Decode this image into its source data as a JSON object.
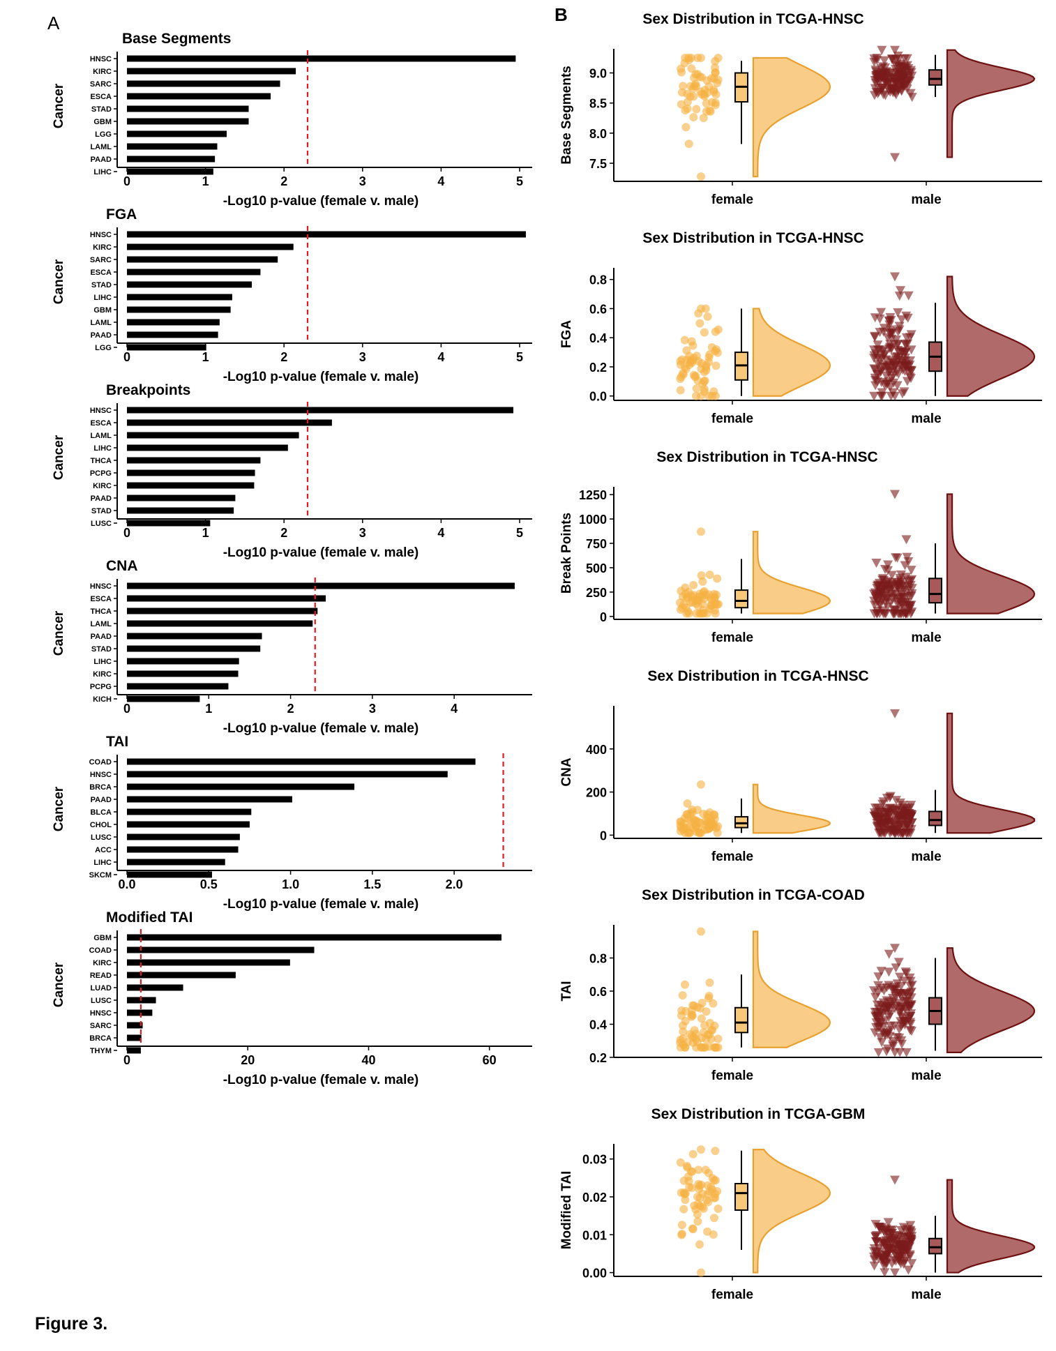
{
  "figure": {
    "caption": "Figure 3.",
    "panel_a_letter": "A",
    "panel_b_letter": "B"
  },
  "colors": {
    "bar": "#000000",
    "threshold": "#e41a1c",
    "female_point": "#f5b041",
    "female_violin_fill": "#f8c87a",
    "female_violin_stroke": "#e8a02e",
    "male_point": "#7b1a1a",
    "male_violin_fill": "#a85a5a",
    "male_violin_stroke": "#6e1010"
  },
  "chart_data": [
    {
      "type": "bar",
      "orientation": "horizontal",
      "title": "Base Segments",
      "ylabel": "Cancer",
      "xlabel": "-Log10 p-value (female v. male)",
      "categories": [
        "HNSC",
        "KIRC",
        "SARC",
        "ESCA",
        "STAD",
        "GBM",
        "LGG",
        "LAML",
        "PAAD",
        "LIHC"
      ],
      "values": [
        4.95,
        2.15,
        1.95,
        1.83,
        1.55,
        1.55,
        1.27,
        1.15,
        1.12,
        1.1
      ],
      "threshold": 2.3,
      "xlim": [
        0,
        5
      ],
      "xticks": [
        0,
        1,
        2,
        3,
        4,
        5
      ],
      "xtick_labels": [
        "0",
        "1",
        "2",
        "3",
        "4",
        "5"
      ]
    },
    {
      "type": "bar",
      "orientation": "horizontal",
      "title": "FGA",
      "ylabel": "Cancer",
      "xlabel": "-Log10 p-value (female v. male)",
      "categories": [
        "HNSC",
        "KIRC",
        "SARC",
        "ESCA",
        "STAD",
        "LIHC",
        "GBM",
        "LAML",
        "PAAD",
        "LGG"
      ],
      "values": [
        5.08,
        2.12,
        1.92,
        1.7,
        1.59,
        1.34,
        1.32,
        1.18,
        1.16,
        1.01
      ],
      "threshold": 2.3,
      "xlim": [
        0,
        5
      ],
      "xticks": [
        0,
        1,
        2,
        3,
        4,
        5
      ],
      "xtick_labels": [
        "0",
        "1",
        "2",
        "3",
        "4",
        "5"
      ]
    },
    {
      "type": "bar",
      "orientation": "horizontal",
      "title": "Breakpoints",
      "ylabel": "Cancer",
      "xlabel": "-Log10 p-value (female v. male)",
      "categories": [
        "HNSC",
        "ESCA",
        "LAML",
        "LIHC",
        "THCA",
        "PCPG",
        "KIRC",
        "PAAD",
        "STAD",
        "LUSC"
      ],
      "values": [
        4.92,
        2.61,
        2.19,
        2.05,
        1.7,
        1.63,
        1.62,
        1.38,
        1.36,
        1.06
      ],
      "threshold": 2.3,
      "xlim": [
        0,
        5
      ],
      "xticks": [
        0,
        1,
        2,
        3,
        4,
        5
      ],
      "xtick_labels": [
        "0",
        "1",
        "2",
        "3",
        "4",
        "5"
      ]
    },
    {
      "type": "bar",
      "orientation": "horizontal",
      "title": "CNA",
      "ylabel": "Cancer",
      "xlabel": "-Log10 p-value (female v. male)",
      "categories": [
        "HNSC",
        "ESCA",
        "THCA",
        "LAML",
        "PAAD",
        "STAD",
        "LIHC",
        "KIRC",
        "PCPG",
        "KICH"
      ],
      "values": [
        4.74,
        2.43,
        2.33,
        2.27,
        1.65,
        1.63,
        1.37,
        1.36,
        1.24,
        0.89
      ],
      "threshold": 2.3,
      "xlim": [
        0,
        4.8
      ],
      "xticks": [
        0,
        1,
        2,
        3,
        4
      ],
      "xtick_labels": [
        "0",
        "1",
        "2",
        "3",
        "4"
      ]
    },
    {
      "type": "bar",
      "orientation": "horizontal",
      "title": "TAI",
      "ylabel": "Cancer",
      "xlabel": "-Log10 p-value (female v. male)",
      "categories": [
        "COAD",
        "HNSC",
        "BRCA",
        "PAAD",
        "BLCA",
        "CHOL",
        "LUSC",
        "ACC",
        "LIHC",
        "SKCM"
      ],
      "values": [
        2.13,
        1.96,
        1.39,
        1.01,
        0.76,
        0.75,
        0.69,
        0.68,
        0.6,
        0.52
      ],
      "threshold": 2.3,
      "xlim": [
        0,
        2.4
      ],
      "xticks": [
        0,
        0.5,
        1,
        1.5,
        2
      ],
      "xtick_labels": [
        "0.0",
        "0.5",
        "1.0",
        "1.5",
        "2.0"
      ]
    },
    {
      "type": "bar",
      "orientation": "horizontal",
      "title": "Modified TAI",
      "ylabel": "Cancer",
      "xlabel": "-Log10 p-value (female v. male)",
      "categories": [
        "GBM",
        "COAD",
        "KIRC",
        "READ",
        "LUAD",
        "LUSC",
        "HNSC",
        "SARC",
        "BRCA",
        "THYM"
      ],
      "values": [
        62,
        31,
        27,
        18,
        9.3,
        4.8,
        4.2,
        2.6,
        2.4,
        2.3
      ],
      "threshold": 2.3,
      "xlim": [
        0,
        65
      ],
      "xticks": [
        0,
        20,
        40,
        60
      ],
      "xtick_labels": [
        "0",
        "20",
        "40",
        "60"
      ]
    },
    {
      "type": "raincloud",
      "title": "Sex Distribution in TCGA-HNSC",
      "ylabel": "Base Segments",
      "categories": [
        "female",
        "male"
      ],
      "ylim": [
        7.2,
        9.4
      ],
      "yticks": [
        7.5,
        8.0,
        8.5,
        9.0
      ],
      "ytick_labels": [
        "7.5",
        "8.0",
        "8.5",
        "9.0"
      ],
      "boxes": [
        {
          "name": "female",
          "q1": 8.52,
          "median": 8.77,
          "q3": 9.0,
          "whisker_low": 7.82,
          "whisker_high": 9.2
        },
        {
          "name": "male",
          "q1": 8.8,
          "median": 8.9,
          "q3": 9.05,
          "whisker_low": 8.6,
          "whisker_high": 9.3
        }
      ],
      "range": [
        {
          "name": "female",
          "min": 7.28,
          "max": 9.25
        },
        {
          "name": "male",
          "min": 7.6,
          "max": 9.38
        }
      ]
    },
    {
      "type": "raincloud",
      "title": "Sex Distribution in TCGA-HNSC",
      "ylabel": "FGA",
      "categories": [
        "female",
        "male"
      ],
      "ylim": [
        -0.03,
        0.88
      ],
      "yticks": [
        0.0,
        0.2,
        0.4,
        0.6,
        0.8
      ],
      "ytick_labels": [
        "0.0",
        "0.2",
        "0.4",
        "0.6",
        "0.8"
      ],
      "boxes": [
        {
          "name": "female",
          "q1": 0.11,
          "median": 0.21,
          "q3": 0.3,
          "whisker_low": 0.0,
          "whisker_high": 0.6
        },
        {
          "name": "male",
          "q1": 0.17,
          "median": 0.27,
          "q3": 0.37,
          "whisker_low": 0.0,
          "whisker_high": 0.64
        }
      ],
      "range": [
        {
          "name": "female",
          "min": 0.0,
          "max": 0.6
        },
        {
          "name": "male",
          "min": 0.0,
          "max": 0.82
        }
      ]
    },
    {
      "type": "raincloud",
      "title": "Sex Distribution in TCGA-HNSC",
      "ylabel": "Break Points",
      "categories": [
        "female",
        "male"
      ],
      "ylim": [
        -30,
        1330
      ],
      "yticks": [
        0,
        250,
        500,
        750,
        1000,
        1250
      ],
      "ytick_labels": [
        "0",
        "250",
        "500",
        "750",
        "1000",
        "1250"
      ],
      "boxes": [
        {
          "name": "female",
          "q1": 90,
          "median": 160,
          "q3": 270,
          "whisker_low": 30,
          "whisker_high": 590
        },
        {
          "name": "male",
          "q1": 140,
          "median": 230,
          "q3": 390,
          "whisker_low": 30,
          "whisker_high": 750
        }
      ],
      "range": [
        {
          "name": "female",
          "min": 30,
          "max": 870
        },
        {
          "name": "male",
          "min": 30,
          "max": 1255
        }
      ]
    },
    {
      "type": "raincloud",
      "title": "Sex Distribution in TCGA-HNSC",
      "ylabel": "CNA",
      "categories": [
        "female",
        "male"
      ],
      "ylim": [
        -15,
        600
      ],
      "yticks": [
        0,
        200,
        400
      ],
      "ytick_labels": [
        "0",
        "200",
        "400"
      ],
      "boxes": [
        {
          "name": "female",
          "q1": 35,
          "median": 55,
          "q3": 85,
          "whisker_low": 10,
          "whisker_high": 170
        },
        {
          "name": "male",
          "q1": 45,
          "median": 70,
          "q3": 110,
          "whisker_low": 10,
          "whisker_high": 210
        }
      ],
      "range": [
        {
          "name": "female",
          "min": 10,
          "max": 235
        },
        {
          "name": "male",
          "min": 10,
          "max": 565
        }
      ]
    },
    {
      "type": "raincloud",
      "title": "Sex Distribution in TCGA-COAD",
      "ylabel": "TAI",
      "categories": [
        "female",
        "male"
      ],
      "ylim": [
        0.2,
        1.0
      ],
      "yticks": [
        0.2,
        0.4,
        0.6,
        0.8
      ],
      "ytick_labels": [
        "0.2",
        "0.4",
        "0.6",
        "0.8"
      ],
      "boxes": [
        {
          "name": "female",
          "q1": 0.35,
          "median": 0.41,
          "q3": 0.5,
          "whisker_low": 0.26,
          "whisker_high": 0.7
        },
        {
          "name": "male",
          "q1": 0.4,
          "median": 0.48,
          "q3": 0.56,
          "whisker_low": 0.24,
          "whisker_high": 0.8
        }
      ],
      "range": [
        {
          "name": "female",
          "min": 0.26,
          "max": 0.96
        },
        {
          "name": "male",
          "min": 0.23,
          "max": 0.86
        }
      ]
    },
    {
      "type": "raincloud",
      "title": "Sex Distribution in TCGA-GBM",
      "ylabel": "Modified TAI",
      "categories": [
        "female",
        "male"
      ],
      "ylim": [
        -0.001,
        0.034
      ],
      "yticks": [
        0.0,
        0.01,
        0.02,
        0.03
      ],
      "ytick_labels": [
        "0.00",
        "0.01",
        "0.02",
        "0.03"
      ],
      "boxes": [
        {
          "name": "female",
          "q1": 0.0165,
          "median": 0.021,
          "q3": 0.0235,
          "whisker_low": 0.006,
          "whisker_high": 0.0322
        },
        {
          "name": "male",
          "q1": 0.005,
          "median": 0.0067,
          "q3": 0.009,
          "whisker_low": 0.0,
          "whisker_high": 0.015
        }
      ],
      "range": [
        {
          "name": "female",
          "min": 0.0,
          "max": 0.0325
        },
        {
          "name": "male",
          "min": 0.0,
          "max": 0.0245
        }
      ]
    }
  ]
}
